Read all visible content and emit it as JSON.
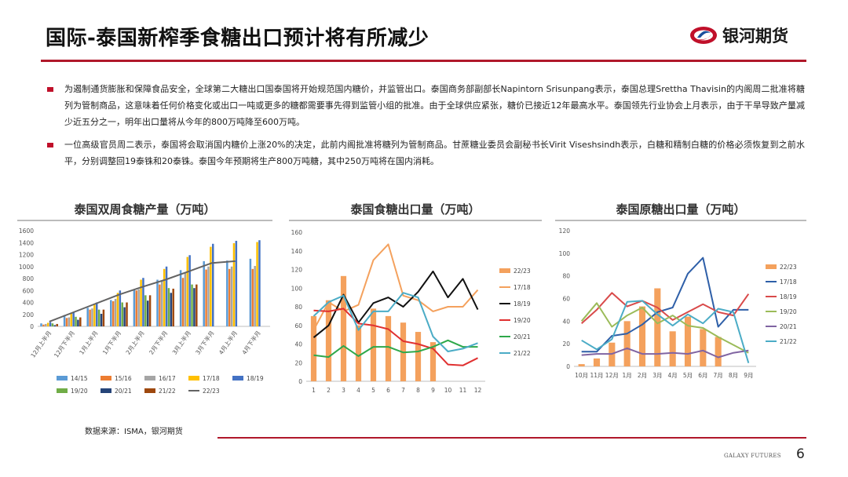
{
  "header": {
    "title": "国际-泰国新榨季食糖出口预计将有所减少",
    "logo_text": "银河期货",
    "brand_color": "#c0102a",
    "accent_color": "#1b4f9c"
  },
  "bullets": [
    "为遏制通货膨胀和保障食品安全，全球第二大糖出口国泰国将开始规范国内糖价，并监管出口。泰国商务部副部长Napintorn Srisunpang表示，泰国总理Srettha Thavisin的内阁周二批准将糖列为管制商品，这意味着任何价格变化或出口一吨或更多的糖都需要事先得到监管小组的批准。由于全球供应紧张，糖价已接近12年最高水平。泰国领先行业协会上月表示，由于干旱导致产量减少近五分之一，明年出口量将从今年的800万吨降至600万吨。",
    "一位高级官员周二表示，泰国将会取消国内糖价上涨20%的决定，此前内阁批准将糖列为管制商品。甘蔗糖业委员会副秘书长Virit Viseshsindh表示，白糖和精制白糖的价格必须恢复到之前水平，分别调整回19泰铢和20泰铢。泰国今年预期将生产800万吨糖，其中250万吨将在国内消耗。"
  ],
  "footer": {
    "source": "数据来源：ISMA，银河期货",
    "brand": "GALAXY FUTURES",
    "page": "6"
  },
  "chart_data": [
    {
      "type": "bar",
      "title": "泰国双周食糖产量（万吨）",
      "categories": [
        "12月上半月",
        "12月下半月",
        "1月上半月",
        "1月下半月",
        "2月上半月",
        "2月下半月",
        "3月上半月",
        "3月下半月",
        "4月上半月",
        "4月下半月"
      ],
      "ylim": [
        0,
        1600
      ],
      "yticks": [
        0,
        200,
        400,
        600,
        800,
        1000,
        1200,
        1400,
        1600
      ],
      "series": [
        {
          "name": "14/15",
          "color": "#5b9bd5",
          "type": "bar",
          "values": [
            50,
            190,
            310,
            440,
            610,
            780,
            940,
            1090,
            1100,
            1130
          ]
        },
        {
          "name": "15/16",
          "color": "#ed7d31",
          "type": "bar",
          "values": [
            30,
            140,
            280,
            420,
            600,
            700,
            810,
            950,
            960,
            960
          ]
        },
        {
          "name": "16/17",
          "color": "#a5a5a5",
          "type": "bar",
          "values": [
            40,
            150,
            300,
            460,
            620,
            760,
            900,
            1000,
            1000,
            1010
          ]
        },
        {
          "name": "17/18",
          "color": "#ffc000",
          "type": "bar",
          "values": [
            60,
            220,
            380,
            560,
            780,
            960,
            1160,
            1330,
            1390,
            1410
          ]
        },
        {
          "name": "18/19",
          "color": "#4472c4",
          "type": "bar",
          "values": [
            70,
            240,
            400,
            600,
            810,
            1000,
            1190,
            1380,
            1430,
            1440
          ]
        },
        {
          "name": "19/20",
          "color": "#70ad47",
          "type": "bar",
          "values": [
            50,
            160,
            280,
            400,
            520,
            640,
            700,
            0,
            0,
            0
          ]
        },
        {
          "name": "20/21",
          "color": "#264478",
          "type": "bar",
          "values": [
            20,
            110,
            210,
            320,
            430,
            560,
            640,
            0,
            0,
            0
          ]
        },
        {
          "name": "21/22",
          "color": "#9e480e",
          "type": "bar",
          "values": [
            40,
            150,
            280,
            400,
            520,
            630,
            700,
            0,
            0,
            0
          ]
        },
        {
          "name": "22/23",
          "color": "#636363",
          "type": "line",
          "values": [
            80,
            230,
            380,
            530,
            660,
            780,
            920,
            1060,
            1090,
            null
          ]
        }
      ]
    },
    {
      "type": "line",
      "title": "泰国食糖出口量（万吨）",
      "categories": [
        "1",
        "2",
        "3",
        "4",
        "5",
        "6",
        "7",
        "8",
        "9",
        "10",
        "11",
        "12"
      ],
      "ylim": [
        0,
        160
      ],
      "yticks": [
        0,
        20,
        40,
        60,
        80,
        100,
        120,
        140,
        160
      ],
      "series": [
        {
          "name": "22/23",
          "color": "#f4a15d",
          "type": "bar",
          "values": [
            70,
            87,
            113,
            60,
            78,
            70,
            63,
            53,
            42,
            null,
            null,
            null
          ]
        },
        {
          "name": "17/18",
          "color": "#f4a15d",
          "type": "line",
          "values": [
            55,
            85,
            75,
            82,
            130,
            147,
            92,
            87,
            75,
            80,
            80,
            98
          ]
        },
        {
          "name": "18/19",
          "color": "#111111",
          "type": "line",
          "values": [
            47,
            60,
            93,
            63,
            84,
            90,
            80,
            96,
            118,
            90,
            110,
            77
          ]
        },
        {
          "name": "19/20",
          "color": "#e03030",
          "type": "line",
          "values": [
            76,
            75,
            78,
            62,
            60,
            56,
            43,
            40,
            35,
            18,
            17,
            25
          ]
        },
        {
          "name": "20/21",
          "color": "#2ea84a",
          "type": "line",
          "values": [
            28,
            26,
            38,
            27,
            37,
            37,
            31,
            32,
            37,
            44,
            37,
            37
          ]
        },
        {
          "name": "21/22",
          "color": "#4bacc6",
          "type": "line",
          "values": [
            70,
            85,
            92,
            55,
            75,
            75,
            95,
            90,
            48,
            32,
            35,
            41
          ]
        }
      ]
    },
    {
      "type": "line",
      "title": "泰国原糖出口量（万吨）",
      "categories": [
        "10月",
        "11月",
        "12月",
        "1月",
        "2月",
        "3月",
        "4月",
        "5月",
        "6月",
        "7月",
        "8月",
        "9月"
      ],
      "ylim": [
        0,
        120
      ],
      "yticks": [
        0,
        20,
        40,
        60,
        80,
        100,
        120
      ],
      "series": [
        {
          "name": "22/23",
          "color": "#f4a15d",
          "type": "bar",
          "values": [
            2,
            7,
            21,
            40,
            53,
            69,
            31,
            44,
            33,
            26,
            null,
            null
          ]
        },
        {
          "name": "17/18",
          "color": "#2e5fa8",
          "type": "line",
          "values": [
            13,
            13,
            27,
            29,
            37,
            48,
            52,
            82,
            96,
            35,
            50,
            50
          ]
        },
        {
          "name": "18/19",
          "color": "#d94a4a",
          "type": "line",
          "values": [
            38,
            50,
            65,
            53,
            58,
            52,
            41,
            48,
            55,
            48,
            45,
            64
          ]
        },
        {
          "name": "19/20",
          "color": "#9bbb59",
          "type": "line",
          "values": [
            40,
            56,
            35,
            45,
            52,
            38,
            45,
            36,
            34,
            26,
            19,
            12
          ]
        },
        {
          "name": "20/21",
          "color": "#8064a2",
          "type": "line",
          "values": [
            10,
            11,
            11,
            16,
            11,
            11,
            12,
            11,
            14,
            8,
            12,
            14
          ]
        },
        {
          "name": "21/22",
          "color": "#4bacc6",
          "type": "line",
          "values": [
            23,
            15,
            24,
            57,
            58,
            46,
            36,
            46,
            38,
            51,
            48,
            3
          ]
        }
      ]
    }
  ]
}
